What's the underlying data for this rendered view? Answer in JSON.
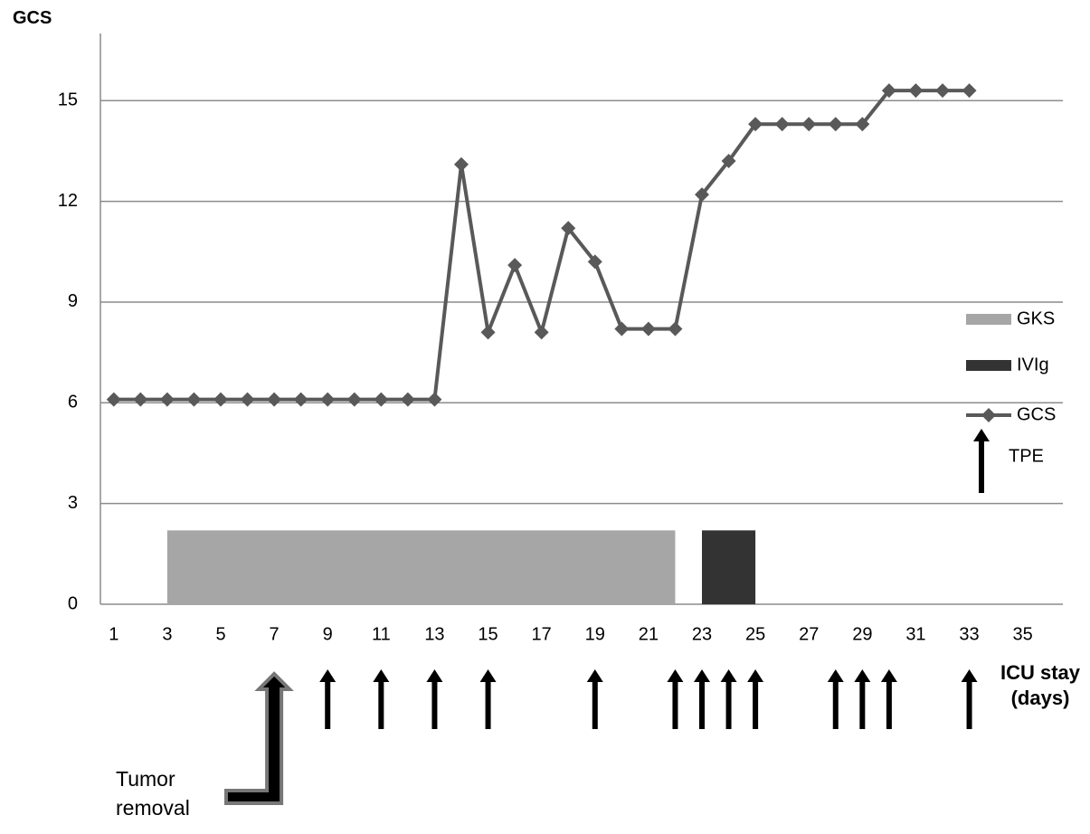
{
  "chart_data": {
    "type": "line",
    "y_label": "GCS",
    "x_label": "ICU stay (days)",
    "x": [
      1,
      2,
      3,
      4,
      5,
      6,
      7,
      8,
      9,
      10,
      11,
      12,
      13,
      14,
      15,
      16,
      17,
      18,
      19,
      20,
      21,
      22,
      23,
      24,
      25,
      26,
      27,
      28,
      29,
      30,
      31,
      32,
      33
    ],
    "series": [
      {
        "name": "GCS",
        "color": "#595959",
        "values": [
          6.1,
          6.1,
          6.1,
          6.1,
          6.1,
          6.1,
          6.1,
          6.1,
          6.1,
          6.1,
          6.1,
          6.1,
          6.1,
          13.1,
          8.1,
          10.1,
          8.1,
          11.2,
          10.2,
          8.2,
          8.2,
          8.2,
          12.2,
          13.2,
          14.3,
          14.3,
          14.3,
          14.3,
          14.3,
          15.3,
          15.3,
          15.3,
          15.3
        ]
      }
    ],
    "bars": [
      {
        "name": "GKS",
        "color": "#a6a6a6",
        "start": 3,
        "end": 22,
        "value": 2.2
      },
      {
        "name": "IVIg",
        "color": "#333333",
        "start": 23,
        "end": 25,
        "value": 2.2
      }
    ],
    "tpe": {
      "name": "TPE",
      "days": [
        9,
        11,
        13,
        15,
        19,
        22,
        23,
        24,
        25,
        28,
        29,
        30,
        33
      ]
    },
    "annotation": {
      "text": "Tumor removal",
      "day": 7
    },
    "xlim": [
      0.5,
      36.5
    ],
    "xticks": [
      1,
      3,
      5,
      7,
      9,
      11,
      13,
      15,
      17,
      19,
      21,
      23,
      25,
      27,
      29,
      31,
      33,
      35
    ],
    "ylim": [
      0,
      17
    ],
    "yticks": [
      0,
      3,
      6,
      9,
      12,
      15
    ],
    "grid": true
  }
}
